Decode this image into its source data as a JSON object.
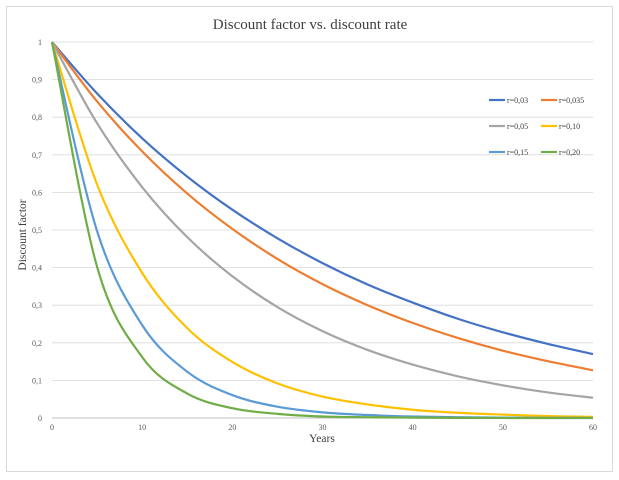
{
  "chart_data": {
    "type": "line",
    "title": "Discount factor vs. discount rate",
    "xlabel": "Years",
    "ylabel": "Discount factor",
    "xlim": [
      0,
      60
    ],
    "ylim": [
      0,
      1
    ],
    "x_ticks": [
      0,
      10,
      20,
      30,
      40,
      50,
      60
    ],
    "y_ticks": [
      0,
      0.1,
      0.2,
      0.3,
      0.4,
      0.5,
      0.6,
      0.7,
      0.8,
      0.9,
      1
    ],
    "x_tick_labels": [
      "0",
      "10",
      "20",
      "30",
      "40",
      "50",
      "60"
    ],
    "y_tick_labels": [
      "0",
      "0,1",
      "0,2",
      "0,3",
      "0,4",
      "0,5",
      "0,6",
      "0,7",
      "0,8",
      "0,9",
      "1"
    ],
    "grid": "horizontal",
    "legend_position": "right",
    "x": [
      0,
      5,
      10,
      15,
      20,
      25,
      30,
      35,
      40,
      45,
      50,
      55,
      60
    ],
    "series": [
      {
        "name": "r=0,03",
        "color": "#4472c4",
        "values": [
          1,
          0.863,
          0.744,
          0.642,
          0.554,
          0.478,
          0.412,
          0.355,
          0.307,
          0.264,
          0.228,
          0.197,
          0.17
        ]
      },
      {
        "name": "r=0,035",
        "color": "#ed7d31",
        "values": [
          1,
          0.842,
          0.709,
          0.597,
          0.503,
          0.423,
          0.356,
          0.3,
          0.253,
          0.213,
          0.179,
          0.151,
          0.127
        ]
      },
      {
        "name": "r=0,05",
        "color": "#a5a5a5",
        "values": [
          1,
          0.784,
          0.614,
          0.481,
          0.377,
          0.295,
          0.231,
          0.181,
          0.142,
          0.111,
          0.087,
          0.068,
          0.054
        ]
      },
      {
        "name": "r=0,10",
        "color": "#ffc000",
        "values": [
          1,
          0.621,
          0.386,
          0.239,
          0.149,
          0.092,
          0.057,
          0.036,
          0.022,
          0.014,
          0.009,
          0.005,
          0.003
        ]
      },
      {
        "name": "r=0,15",
        "color": "#5b9bd5",
        "values": [
          1,
          0.497,
          0.247,
          0.123,
          0.061,
          0.03,
          0.015,
          0.008,
          0.004,
          0.002,
          0.001,
          0.0005,
          0.0002
        ]
      },
      {
        "name": "r=0,20",
        "color": "#70ad47",
        "values": [
          1,
          0.402,
          0.162,
          0.065,
          0.026,
          0.011,
          0.004,
          0.002,
          0.001,
          0.0003,
          0.0001,
          0,
          0
        ]
      }
    ]
  }
}
